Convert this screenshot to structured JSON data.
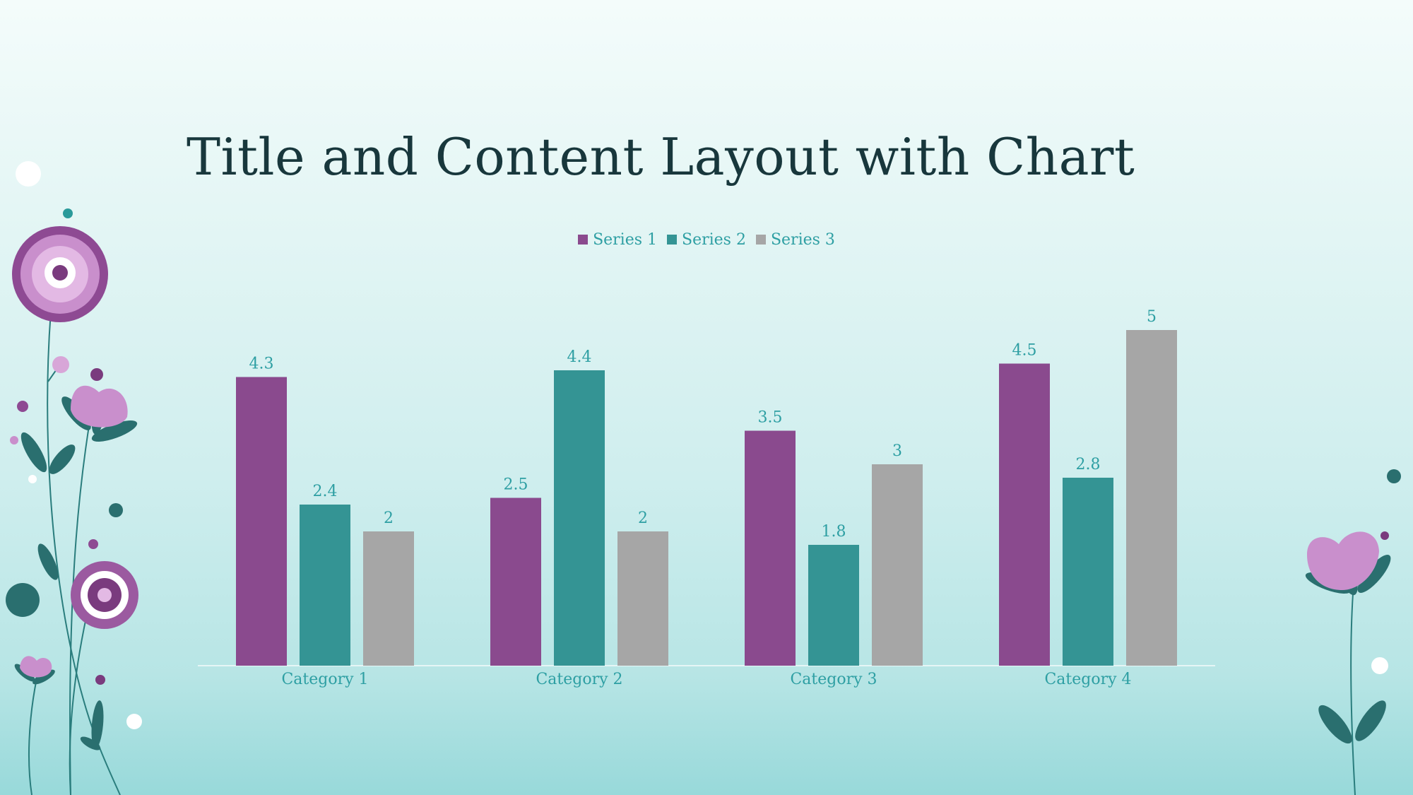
{
  "slide": {
    "title": "Title and Content Layout with Chart"
  },
  "colors": {
    "series1": "#8a4a8e",
    "series2": "#349494",
    "series3": "#a6a6a6",
    "label_text": "#2e9fa3",
    "title_text": "#18373c"
  },
  "chart_data": {
    "type": "bar",
    "categories": [
      "Category 1",
      "Category 2",
      "Category 3",
      "Category 4"
    ],
    "series": [
      {
        "name": "Series 1",
        "values": [
          4.3,
          2.5,
          3.5,
          4.5
        ]
      },
      {
        "name": "Series 2",
        "values": [
          2.4,
          4.4,
          1.8,
          2.8
        ]
      },
      {
        "name": "Series 3",
        "values": [
          2,
          2,
          3,
          5
        ]
      }
    ],
    "ylim": [
      0,
      5
    ],
    "grid": false,
    "legend": "top",
    "data_labels": true
  }
}
